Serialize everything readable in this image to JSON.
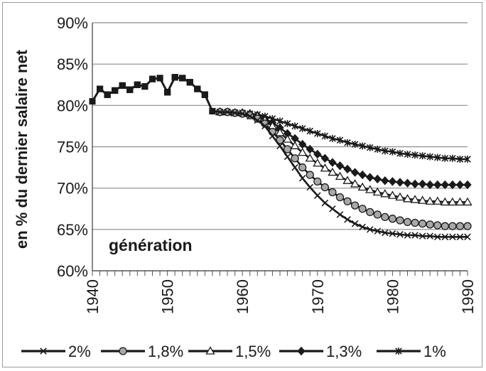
{
  "chart_data": {
    "type": "line",
    "title": "",
    "xlabel": "",
    "ylabel": "en % du dernier salaire net",
    "annotation": "génération",
    "xlim": [
      1940,
      1990
    ],
    "ylim": [
      60,
      90
    ],
    "x_ticks": [
      "1940",
      "1950",
      "1960",
      "1970",
      "1980",
      "1990"
    ],
    "y_ticks": [
      "60%",
      "65%",
      "70%",
      "75%",
      "80%",
      "85%",
      "90%"
    ],
    "grid": true,
    "legend_position": "bottom",
    "x": [
      1940,
      1941,
      1942,
      1943,
      1944,
      1945,
      1946,
      1947,
      1948,
      1949,
      1950,
      1951,
      1952,
      1953,
      1954,
      1955,
      1956,
      1957,
      1958,
      1959,
      1960,
      1961,
      1962,
      1963,
      1964,
      1965,
      1966,
      1967,
      1968,
      1969,
      1970,
      1971,
      1972,
      1973,
      1974,
      1975,
      1976,
      1977,
      1978,
      1979,
      1980,
      1981,
      1982,
      1983,
      1984,
      1985,
      1986,
      1987,
      1988,
      1989,
      1990
    ],
    "series": [
      {
        "name": "2%",
        "marker": "x",
        "color": "#1a1a1a",
        "values": [
          80.5,
          82.0,
          81.3,
          81.8,
          82.4,
          81.9,
          82.5,
          82.3,
          83.2,
          83.3,
          81.6,
          83.4,
          83.3,
          82.8,
          82.0,
          81.3,
          79.3,
          79.2,
          79.2,
          79.1,
          79.0,
          78.7,
          78.2,
          77.5,
          76.3,
          75.1,
          73.8,
          72.5,
          71.2,
          70.1,
          69.1,
          68.2,
          67.5,
          66.8,
          66.2,
          65.7,
          65.3,
          65.0,
          64.8,
          64.6,
          64.5,
          64.4,
          64.3,
          64.3,
          64.2,
          64.2,
          64.1,
          64.1,
          64.1,
          64.1,
          64.1
        ]
      },
      {
        "name": "1,8%",
        "marker": "circle",
        "color": "#1a1a1a",
        "values": [
          80.5,
          82.0,
          81.3,
          81.8,
          82.4,
          81.9,
          82.5,
          82.3,
          83.2,
          83.3,
          81.6,
          83.4,
          83.3,
          82.8,
          82.0,
          81.3,
          79.3,
          79.2,
          79.2,
          79.1,
          79.0,
          78.8,
          78.4,
          77.8,
          76.8,
          75.8,
          74.7,
          73.6,
          72.5,
          71.6,
          70.8,
          70.1,
          69.5,
          68.9,
          68.4,
          67.9,
          67.5,
          67.1,
          66.8,
          66.5,
          66.3,
          66.1,
          65.9,
          65.8,
          65.7,
          65.6,
          65.5,
          65.4,
          65.4,
          65.4,
          65.4
        ]
      },
      {
        "name": "1,5%",
        "marker": "triangle",
        "color": "#1a1a1a",
        "values": [
          80.5,
          82.0,
          81.3,
          81.8,
          82.4,
          81.9,
          82.5,
          82.3,
          83.2,
          83.3,
          81.6,
          83.4,
          83.3,
          82.8,
          82.0,
          81.3,
          79.3,
          79.2,
          79.2,
          79.1,
          79.1,
          79.0,
          78.7,
          78.2,
          77.5,
          76.7,
          75.9,
          75.1,
          74.3,
          73.6,
          73.0,
          72.4,
          71.9,
          71.4,
          70.9,
          70.5,
          70.1,
          69.8,
          69.5,
          69.3,
          69.1,
          68.9,
          68.7,
          68.6,
          68.5,
          68.4,
          68.4,
          68.3,
          68.3,
          68.3,
          68.3
        ]
      },
      {
        "name": "1,3%",
        "marker": "diamond",
        "color": "#1a1a1a",
        "values": [
          80.5,
          82.0,
          81.3,
          81.8,
          82.4,
          81.9,
          82.5,
          82.3,
          83.2,
          83.3,
          81.6,
          83.4,
          83.3,
          82.8,
          82.0,
          81.3,
          79.3,
          79.2,
          79.2,
          79.1,
          79.1,
          79.0,
          78.8,
          78.4,
          77.9,
          77.3,
          76.6,
          76.0,
          75.3,
          74.7,
          74.1,
          73.6,
          73.1,
          72.7,
          72.3,
          71.9,
          71.6,
          71.3,
          71.1,
          70.9,
          70.8,
          70.7,
          70.6,
          70.5,
          70.5,
          70.4,
          70.4,
          70.4,
          70.4,
          70.4,
          70.4
        ]
      },
      {
        "name": "1%",
        "marker": "asterisk",
        "color": "#1a1a1a",
        "values": [
          80.5,
          82.0,
          81.3,
          81.8,
          82.4,
          81.9,
          82.5,
          82.3,
          83.2,
          83.3,
          81.6,
          83.4,
          83.3,
          82.8,
          82.0,
          81.3,
          79.3,
          79.2,
          79.2,
          79.1,
          79.1,
          79.0,
          78.9,
          78.7,
          78.4,
          78.1,
          77.8,
          77.5,
          77.2,
          76.9,
          76.6,
          76.3,
          76.0,
          75.8,
          75.5,
          75.3,
          75.1,
          74.9,
          74.7,
          74.5,
          74.4,
          74.2,
          74.1,
          74.0,
          73.9,
          73.8,
          73.7,
          73.6,
          73.6,
          73.5,
          73.5
        ]
      }
    ]
  }
}
